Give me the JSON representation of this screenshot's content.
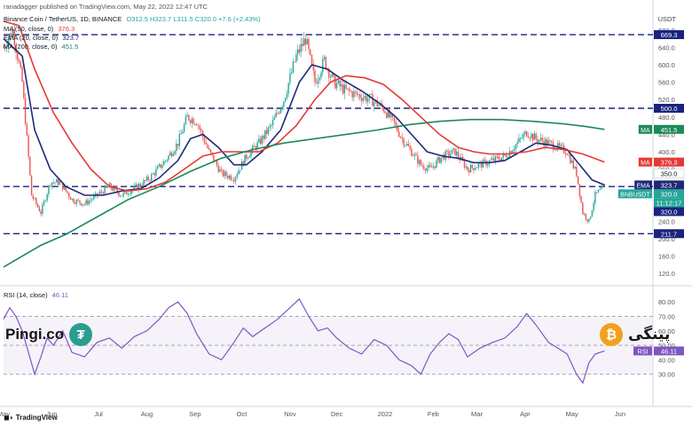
{
  "header": {
    "publisher": "ranadagger published on TradingView.com, May 22, 2022 12:47 UTC",
    "symbol_line": "Binance Coin / TetherUS, 1D, BINANCE",
    "ohlc": "O312.5  H323.7  L311.5  C320.0  +7.6 (+2.43%)",
    "ma50": "MA (50, close, 0)",
    "ma50_value": "376.3",
    "ema20": "EMA (20, close, 0)",
    "ema20_value": "323.7",
    "ma200": "MA (200, close, 0)",
    "ma200_value": "451.5",
    "currency": "USDT",
    "rsi_label": "RSI (14, close)",
    "rsi_value": "46.11",
    "tv_brand": "TradingView"
  },
  "watermark": {
    "left_text": "Pingi.co",
    "left_coin_symbol": "₮",
    "right_text": "پینگی",
    "right_coin_symbol": "₿"
  },
  "colors": {
    "candle_up": "#26a69a",
    "candle_down": "#ef5350",
    "ema20": "#1e2a78",
    "ma50": "#e53935",
    "ma200": "#1b8a5a",
    "rsi": "#7e57c2",
    "level_line": "#1a237e"
  },
  "chart_data": {
    "type": "candlestick",
    "title": "Binance Coin / TetherUS, 1D, BINANCE",
    "xlabel": "",
    "ylabel": "USDT",
    "ylim": [
      100,
      700
    ],
    "y_ticks": [
      120,
      160,
      200,
      240,
      280,
      320,
      360,
      400,
      440,
      480,
      520,
      560,
      600,
      640,
      680
    ],
    "x_ticks": [
      "May",
      "Jun",
      "Jul",
      "Aug",
      "Sep",
      "Oct",
      "Nov",
      "Dec",
      "2022",
      "Feb",
      "Mar",
      "Apr",
      "May",
      "Jun"
    ],
    "x_tick_index": [
      0,
      31,
      61,
      92,
      123,
      153,
      184,
      214,
      245,
      276,
      304,
      335,
      365,
      396
    ],
    "horizontal_levels": [
      669.3,
      500.0,
      320.0,
      211.7
    ],
    "price_path": [
      {
        "i": 0,
        "c": 640
      },
      {
        "i": 6,
        "c": 680
      },
      {
        "i": 12,
        "c": 560
      },
      {
        "i": 18,
        "c": 300
      },
      {
        "i": 24,
        "c": 260
      },
      {
        "i": 30,
        "c": 330
      },
      {
        "i": 36,
        "c": 330
      },
      {
        "i": 44,
        "c": 290
      },
      {
        "i": 52,
        "c": 280
      },
      {
        "i": 60,
        "c": 300
      },
      {
        "i": 68,
        "c": 320
      },
      {
        "i": 76,
        "c": 300
      },
      {
        "i": 86,
        "c": 320
      },
      {
        "i": 94,
        "c": 340
      },
      {
        "i": 104,
        "c": 380
      },
      {
        "i": 112,
        "c": 420
      },
      {
        "i": 118,
        "c": 480
      },
      {
        "i": 124,
        "c": 470
      },
      {
        "i": 132,
        "c": 400
      },
      {
        "i": 140,
        "c": 350
      },
      {
        "i": 148,
        "c": 340
      },
      {
        "i": 156,
        "c": 390
      },
      {
        "i": 164,
        "c": 420
      },
      {
        "i": 172,
        "c": 460
      },
      {
        "i": 180,
        "c": 520
      },
      {
        "i": 188,
        "c": 620
      },
      {
        "i": 194,
        "c": 660
      },
      {
        "i": 200,
        "c": 560
      },
      {
        "i": 206,
        "c": 610
      },
      {
        "i": 212,
        "c": 560
      },
      {
        "i": 220,
        "c": 540
      },
      {
        "i": 228,
        "c": 530
      },
      {
        "i": 236,
        "c": 520
      },
      {
        "i": 244,
        "c": 500
      },
      {
        "i": 250,
        "c": 470
      },
      {
        "i": 256,
        "c": 430
      },
      {
        "i": 262,
        "c": 400
      },
      {
        "i": 268,
        "c": 370
      },
      {
        "i": 274,
        "c": 360
      },
      {
        "i": 282,
        "c": 390
      },
      {
        "i": 290,
        "c": 400
      },
      {
        "i": 298,
        "c": 360
      },
      {
        "i": 306,
        "c": 370
      },
      {
        "i": 314,
        "c": 380
      },
      {
        "i": 322,
        "c": 390
      },
      {
        "i": 330,
        "c": 420
      },
      {
        "i": 336,
        "c": 445
      },
      {
        "i": 342,
        "c": 430
      },
      {
        "i": 350,
        "c": 420
      },
      {
        "i": 356,
        "c": 410
      },
      {
        "i": 362,
        "c": 400
      },
      {
        "i": 368,
        "c": 350
      },
      {
        "i": 372,
        "c": 260
      },
      {
        "i": 376,
        "c": 240
      },
      {
        "i": 380,
        "c": 300
      },
      {
        "i": 386,
        "c": 320
      }
    ],
    "series": [
      {
        "name": "EMA (20)",
        "last": 323.7,
        "points": [
          [
            0,
            660
          ],
          [
            12,
            620
          ],
          [
            20,
            450
          ],
          [
            30,
            360
          ],
          [
            40,
            320
          ],
          [
            52,
            300
          ],
          [
            64,
            300
          ],
          [
            76,
            310
          ],
          [
            88,
            315
          ],
          [
            100,
            340
          ],
          [
            112,
            380
          ],
          [
            120,
            430
          ],
          [
            128,
            440
          ],
          [
            138,
            410
          ],
          [
            148,
            370
          ],
          [
            156,
            370
          ],
          [
            166,
            400
          ],
          [
            178,
            450
          ],
          [
            190,
            560
          ],
          [
            198,
            600
          ],
          [
            208,
            590
          ],
          [
            218,
            565
          ],
          [
            230,
            540
          ],
          [
            242,
            510
          ],
          [
            252,
            480
          ],
          [
            262,
            440
          ],
          [
            272,
            400
          ],
          [
            282,
            390
          ],
          [
            292,
            385
          ],
          [
            302,
            375
          ],
          [
            312,
            375
          ],
          [
            322,
            380
          ],
          [
            332,
            400
          ],
          [
            342,
            420
          ],
          [
            352,
            415
          ],
          [
            362,
            405
          ],
          [
            370,
            370
          ],
          [
            378,
            335
          ],
          [
            386,
            323.7
          ]
        ]
      },
      {
        "name": "MA (50)",
        "last": 376.3,
        "points": [
          [
            0,
            700
          ],
          [
            10,
            690
          ],
          [
            20,
            590
          ],
          [
            32,
            490
          ],
          [
            44,
            420
          ],
          [
            56,
            360
          ],
          [
            68,
            320
          ],
          [
            80,
            310
          ],
          [
            92,
            315
          ],
          [
            104,
            330
          ],
          [
            116,
            360
          ],
          [
            128,
            390
          ],
          [
            140,
            400
          ],
          [
            152,
            400
          ],
          [
            164,
            400
          ],
          [
            176,
            420
          ],
          [
            188,
            460
          ],
          [
            200,
            520
          ],
          [
            210,
            560
          ],
          [
            220,
            575
          ],
          [
            232,
            570
          ],
          [
            244,
            555
          ],
          [
            256,
            520
          ],
          [
            268,
            480
          ],
          [
            280,
            440
          ],
          [
            292,
            410
          ],
          [
            302,
            400
          ],
          [
            312,
            395
          ],
          [
            324,
            395
          ],
          [
            336,
            400
          ],
          [
            348,
            410
          ],
          [
            360,
            405
          ],
          [
            372,
            395
          ],
          [
            386,
            376.3
          ]
        ]
      },
      {
        "name": "MA (200)",
        "last": 451.5,
        "points": [
          [
            0,
            135
          ],
          [
            12,
            160
          ],
          [
            24,
            185
          ],
          [
            40,
            210
          ],
          [
            60,
            250
          ],
          [
            80,
            290
          ],
          [
            100,
            320
          ],
          [
            120,
            355
          ],
          [
            140,
            385
          ],
          [
            160,
            405
          ],
          [
            180,
            420
          ],
          [
            200,
            430
          ],
          [
            220,
            440
          ],
          [
            240,
            450
          ],
          [
            260,
            462
          ],
          [
            280,
            470
          ],
          [
            300,
            474
          ],
          [
            320,
            474
          ],
          [
            340,
            470
          ],
          [
            360,
            464
          ],
          [
            374,
            458
          ],
          [
            386,
            451.5
          ]
        ]
      }
    ],
    "price_labels": [
      {
        "value": 669.3,
        "text": "669.3",
        "color": "#1a237e"
      },
      {
        "value": 500.0,
        "text": "500.0",
        "color": "#1a237e"
      },
      {
        "value": 451.5,
        "text": "451.5",
        "tag": "MA",
        "color": "#1b8a5a"
      },
      {
        "value": 376.3,
        "text": "376.3",
        "tag": "MA",
        "color": "#e53935"
      },
      {
        "value": 350.0,
        "text": "350.0",
        "color": "#ffffff"
      },
      {
        "value": 323.7,
        "text": "323.7",
        "tag": "EMA",
        "color": "#1e2a78"
      },
      {
        "value": 320.0,
        "text": "320.0",
        "tag": "BNBUSDT",
        "color": "#26a69a"
      },
      {
        "value": 320.0,
        "text": "11:12:17",
        "color": "#26a69a"
      },
      {
        "value": 320.0,
        "text": "320.0",
        "color": "#1a237e"
      },
      {
        "value": 211.7,
        "text": "211.7",
        "color": "#1a237e"
      }
    ],
    "rsi": {
      "name": "RSI (14)",
      "last": 46.11,
      "ylim": [
        20,
        85
      ],
      "y_ticks": [
        30,
        40,
        50,
        60,
        70,
        80
      ],
      "bands": [
        70,
        50,
        30
      ],
      "points": [
        [
          0,
          68
        ],
        [
          4,
          76
        ],
        [
          8,
          70
        ],
        [
          12,
          60
        ],
        [
          16,
          45
        ],
        [
          20,
          30
        ],
        [
          24,
          42
        ],
        [
          28,
          55
        ],
        [
          32,
          50
        ],
        [
          38,
          60
        ],
        [
          44,
          45
        ],
        [
          52,
          42
        ],
        [
          60,
          52
        ],
        [
          68,
          55
        ],
        [
          76,
          48
        ],
        [
          84,
          56
        ],
        [
          92,
          60
        ],
        [
          100,
          68
        ],
        [
          106,
          76
        ],
        [
          112,
          80
        ],
        [
          118,
          72
        ],
        [
          124,
          58
        ],
        [
          132,
          44
        ],
        [
          140,
          40
        ],
        [
          148,
          52
        ],
        [
          154,
          62
        ],
        [
          160,
          56
        ],
        [
          168,
          62
        ],
        [
          176,
          68
        ],
        [
          184,
          76
        ],
        [
          190,
          82
        ],
        [
          196,
          70
        ],
        [
          202,
          60
        ],
        [
          208,
          62
        ],
        [
          214,
          55
        ],
        [
          222,
          48
        ],
        [
          230,
          44
        ],
        [
          238,
          54
        ],
        [
          246,
          50
        ],
        [
          254,
          40
        ],
        [
          262,
          36
        ],
        [
          268,
          30
        ],
        [
          274,
          44
        ],
        [
          280,
          52
        ],
        [
          286,
          58
        ],
        [
          292,
          54
        ],
        [
          298,
          42
        ],
        [
          306,
          48
        ],
        [
          314,
          52
        ],
        [
          322,
          55
        ],
        [
          330,
          63
        ],
        [
          336,
          72
        ],
        [
          342,
          64
        ],
        [
          350,
          52
        ],
        [
          356,
          48
        ],
        [
          362,
          44
        ],
        [
          368,
          30
        ],
        [
          372,
          24
        ],
        [
          376,
          38
        ],
        [
          380,
          44
        ],
        [
          386,
          46.11
        ]
      ]
    }
  }
}
